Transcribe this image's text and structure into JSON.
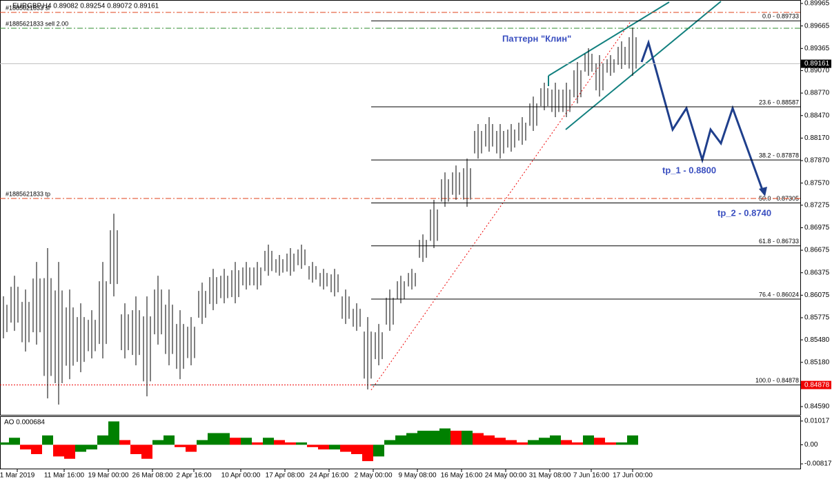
{
  "chart_data": {
    "type": "ohlc",
    "title": "EURGBP,H4 0.89082 0.89254 0.89072 0.89161",
    "bar_color": "#000000",
    "high": [
      0.8606,
      0.86335,
      0.86151,
      0.86519,
      0.86703,
      0.86519,
      0.86151,
      0.85967,
      0.85875,
      0.86519,
      0.87162,
      0.85967,
      0.86059,
      0.86059,
      0.86335,
      0.86151,
      0.85875,
      0.85784,
      0.86243,
      0.86427,
      0.86427,
      0.86519,
      0.86519,
      0.86519,
      0.86749,
      0.86611,
      0.86703,
      0.86749,
      0.86519,
      0.86427,
      0.86427,
      0.86151,
      0.85967,
      0.85784,
      0.85692,
      0.86151,
      0.86335,
      0.86427,
      0.86886,
      0.87346,
      0.87713,
      0.87805,
      0.87897,
      0.88357,
      0.88449,
      0.88357,
      0.88357,
      0.88449,
      0.88724,
      0.88908,
      0.88908,
      0.88908,
      0.89184,
      0.89368,
      0.89276,
      0.89276,
      0.8946,
      0.89643
    ],
    "low": [
      0.855,
      0.856,
      0.85324,
      0.85416,
      0.84699,
      0.84617,
      0.84956,
      0.85048,
      0.85232,
      0.85232,
      0.86059,
      0.85232,
      0.8514,
      0.84727,
      0.85416,
      0.8514,
      0.84956,
      0.8514,
      0.85692,
      0.85875,
      0.85967,
      0.85967,
      0.86151,
      0.86151,
      0.86335,
      0.86335,
      0.86335,
      0.86427,
      0.86243,
      0.86151,
      0.86059,
      0.85692,
      0.856,
      0.84819,
      0.8514,
      0.856,
      0.85967,
      0.86151,
      0.86519,
      0.86703,
      0.87254,
      0.87346,
      0.87254,
      0.87897,
      0.87989,
      0.87897,
      0.87989,
      0.88081,
      0.88265,
      0.88541,
      0.88449,
      0.88449,
      0.88632,
      0.89,
      0.88724,
      0.89,
      0.89092,
      0.89
    ],
    "ylim": [
      0.8448,
      0.90011
    ],
    "yticks": [
      {
        "value": 0.89965,
        "label": "0.89965"
      },
      {
        "value": 0.89665,
        "label": "0.89665"
      },
      {
        "value": 0.89365,
        "label": "0.89365"
      },
      {
        "value": 0.8907,
        "label": "0.89070"
      },
      {
        "value": 0.8877,
        "label": "0.88770"
      },
      {
        "value": 0.8847,
        "label": "0.88470"
      },
      {
        "value": 0.8817,
        "label": "0.88170"
      },
      {
        "value": 0.8787,
        "label": "0.87870"
      },
      {
        "value": 0.8757,
        "label": "0.87570"
      },
      {
        "value": 0.87275,
        "label": "0.87275"
      },
      {
        "value": 0.86975,
        "label": "0.86975"
      },
      {
        "value": 0.86675,
        "label": "0.86675"
      },
      {
        "value": 0.86375,
        "label": "0.86375"
      },
      {
        "value": 0.86075,
        "label": "0.86075"
      },
      {
        "value": 0.85775,
        "label": "0.85775"
      },
      {
        "value": 0.8548,
        "label": "0.85480"
      },
      {
        "value": 0.8518,
        "label": "0.85180"
      },
      {
        "value": 0.8459,
        "label": "0.84590"
      }
    ],
    "xticks": [
      {
        "value": 1.25,
        "label": "1 Mar 2019"
      },
      {
        "value": 5.5,
        "label": "11 Mar 16:00"
      },
      {
        "value": 9.5,
        "label": "19 Mar 00:00"
      },
      {
        "value": 13.5,
        "label": "26 Mar 08:00"
      },
      {
        "value": 17.25,
        "label": "2 Apr 16:00"
      },
      {
        "value": 21.5,
        "label": "10 Apr 00:00"
      },
      {
        "value": 25.5,
        "label": "17 Apr 08:00"
      },
      {
        "value": 29.5,
        "label": "24 Apr 16:00"
      },
      {
        "value": 33.5,
        "label": "2 May 00:00"
      },
      {
        "value": 37.5,
        "label": "9 May 08:00"
      },
      {
        "value": 41.5,
        "label": "16 May 16:00"
      },
      {
        "value": 45.5,
        "label": "24 May 00:00"
      },
      {
        "value": 49.5,
        "label": "31 May 08:00"
      },
      {
        "value": 53.25,
        "label": "7 Jun 16:00"
      },
      {
        "value": 57,
        "label": "17 Jun 00:00"
      }
    ],
    "price_lines": [
      {
        "label": "#1885621833 sl",
        "value": 0.89846,
        "color": "#e0401a"
      },
      {
        "label": "#1885621833 sell 2.00",
        "value": 0.89634,
        "color": "#2e8b2e"
      },
      {
        "label": "#1885621833 tp",
        "value": 0.87365,
        "color": "#e0401a"
      }
    ],
    "current_price": {
      "value": 0.89161,
      "label": "0.89161"
    },
    "low_price": {
      "value": 0.84878,
      "label": "0.84878"
    },
    "fib_levels": [
      {
        "value": 0.89733,
        "label": "0.0 - 0.89733"
      },
      {
        "value": 0.88587,
        "label": "23.6 - 0.88587"
      },
      {
        "value": 0.87878,
        "label": "38.2 - 0.87878"
      },
      {
        "value": 0.87305,
        "label": "50.0 - 0.87305"
      },
      {
        "value": 0.86733,
        "label": "61.8 - 0.86733"
      },
      {
        "value": 0.86024,
        "label": "76.4 - 0.86024"
      },
      {
        "value": 0.84878,
        "label": "100.0 - 0.84878"
      }
    ],
    "annotations": [
      "Паттерн \"Клин\"",
      "tp_1 - 0.8800",
      "tp_2 - 0.8740"
    ],
    "indicator": {
      "title": "AO 0.000684",
      "up_color": "#008000",
      "down_color": "#ff0000",
      "values": [
        0.001,
        0.003,
        -0.002,
        -0.004,
        0.004,
        -0.005,
        -0.006,
        -0.003,
        -0.002,
        0.004,
        0.01,
        0.002,
        -0.004,
        -0.006,
        0.002,
        0.004,
        -0.001,
        -0.003,
        0.002,
        0.005,
        0.005,
        0.003,
        0.003,
        0.001,
        0.003,
        0.002,
        0.001,
        0.001,
        -0.001,
        -0.002,
        -0.002,
        -0.003,
        -0.004,
        -0.007,
        -0.005,
        0.002,
        0.004,
        0.005,
        0.006,
        0.006,
        0.007,
        0.006,
        0.006,
        0.005,
        0.004,
        0.003,
        0.002,
        0.001,
        0.002,
        0.003,
        0.004,
        0.002,
        0.001,
        0.004,
        0.003,
        0.001,
        0.001,
        0.004
      ],
      "ylim": [
        -0.0105,
        0.01163
      ],
      "yticks": [
        0.01017,
        {
          "value": 0,
          "label": "0.00"
        },
        -0.008171
      ]
    }
  }
}
